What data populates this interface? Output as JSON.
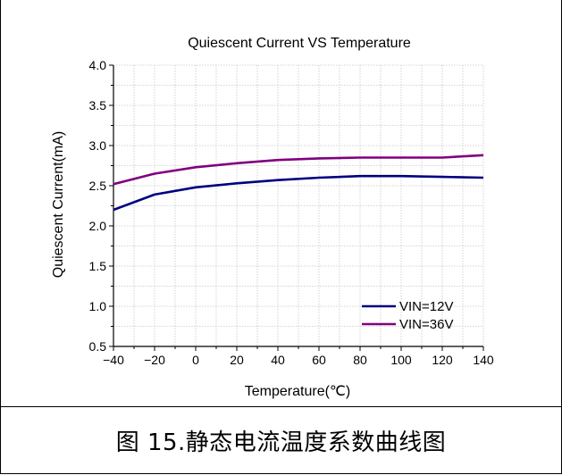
{
  "chart_data": {
    "type": "line",
    "title": "Quiescent Current VS Temperature",
    "xlabel": "Temperature(℃)",
    "ylabel": "Quiescent Current(mA)",
    "xlim": [
      -40,
      140
    ],
    "ylim": [
      0.5,
      4.0
    ],
    "xticks": [
      -40,
      -20,
      0,
      20,
      40,
      60,
      80,
      100,
      120,
      140
    ],
    "xtick_labels": [
      "−40",
      "−20",
      "0",
      "20",
      "40",
      "60",
      "80",
      "100",
      "120",
      "140"
    ],
    "yticks": [
      0.5,
      1.0,
      1.5,
      2.0,
      2.5,
      3.0,
      3.5,
      4.0
    ],
    "ytick_labels": [
      "0.5",
      "1.0",
      "1.5",
      "2.0",
      "2.5",
      "3.0",
      "3.5",
      "4.0"
    ],
    "grid": true,
    "legend_position": "bottom-right",
    "x": [
      -40,
      -20,
      0,
      20,
      40,
      60,
      80,
      100,
      120,
      140
    ],
    "series": [
      {
        "name": "VIN=12V",
        "color": "#000080",
        "values": [
          2.2,
          2.39,
          2.48,
          2.53,
          2.57,
          2.6,
          2.62,
          2.62,
          2.61,
          2.6
        ]
      },
      {
        "name": "VIN=36V",
        "color": "#800080",
        "values": [
          2.52,
          2.65,
          2.73,
          2.78,
          2.82,
          2.84,
          2.85,
          2.85,
          2.85,
          2.88
        ]
      }
    ]
  },
  "caption": "图 15.静态电流温度系数曲线图"
}
